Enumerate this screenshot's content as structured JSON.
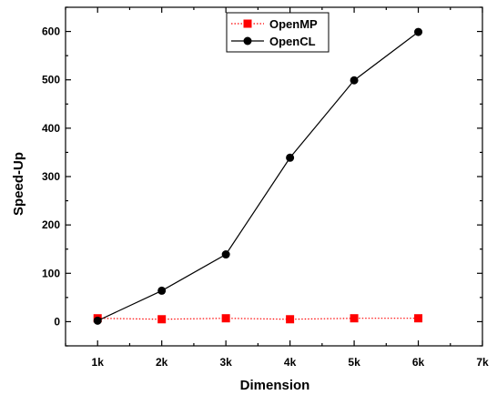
{
  "chart_data": {
    "type": "line",
    "title": "",
    "xlabel": "Dimension",
    "ylabel": "Speed-Up",
    "x": [
      1,
      2,
      3,
      4,
      5,
      6
    ],
    "x_tick_values": [
      1,
      2,
      3,
      4,
      5,
      6,
      7
    ],
    "x_tick_labels": [
      "1k",
      "2k",
      "3k",
      "4k",
      "5k",
      "6k",
      "7k"
    ],
    "xlim": [
      0.5,
      7
    ],
    "y_tick_values": [
      0,
      100,
      200,
      300,
      400,
      500,
      600
    ],
    "y_tick_labels": [
      "0",
      "100",
      "200",
      "300",
      "400",
      "500",
      "600"
    ],
    "ylim": [
      -50,
      650
    ],
    "grid": false,
    "legend_position": "top-center",
    "series": [
      {
        "name": "OpenMP",
        "values": [
          7,
          5,
          7,
          5,
          7,
          7
        ],
        "color": "#ff0000",
        "marker": "square",
        "line": "dotted"
      },
      {
        "name": "OpenCL",
        "values": [
          2,
          64,
          139,
          339,
          499,
          599
        ],
        "color": "#000000",
        "marker": "circle",
        "line": "solid"
      }
    ]
  }
}
